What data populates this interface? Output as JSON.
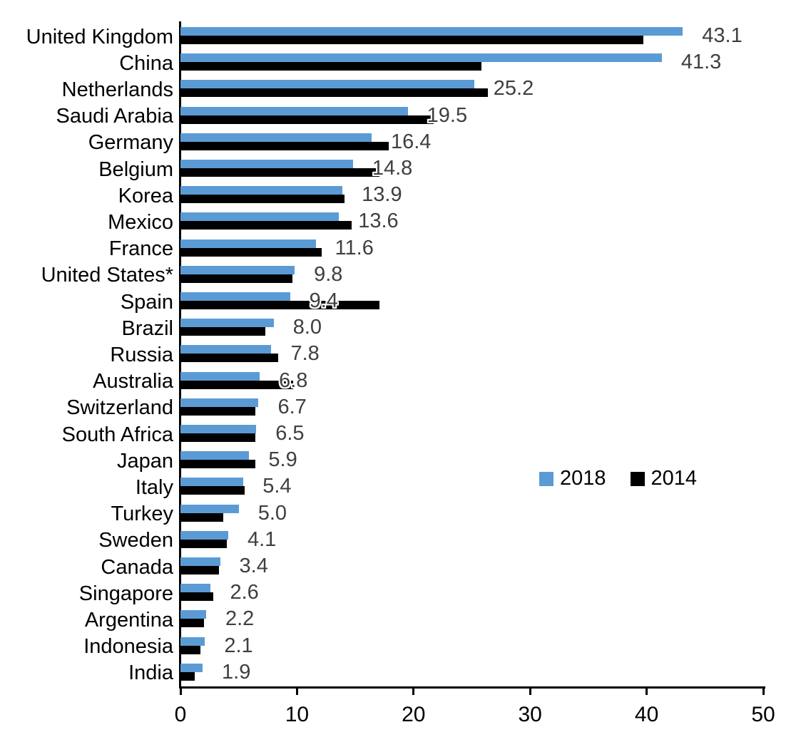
{
  "chart_data": {
    "type": "bar",
    "orientation": "horizontal",
    "title": "",
    "xlabel": "",
    "ylabel": "",
    "xlim": [
      0,
      50
    ],
    "x_ticks": [
      "0",
      "10",
      "20",
      "30",
      "40",
      "50"
    ],
    "grid": false,
    "legend_position": "middle-right",
    "categories": [
      "United Kingdom",
      "China",
      "Netherlands",
      "Saudi Arabia",
      "Germany",
      "Belgium",
      "Korea",
      "Mexico",
      "France",
      "United States*",
      "Spain",
      "Brazil",
      "Russia",
      "Australia",
      "Switzerland",
      "South Africa",
      "Japan",
      "Italy",
      "Turkey",
      "Sweden",
      "Canada",
      "Singapore",
      "Argentina",
      "Indonesia",
      "India"
    ],
    "series": [
      {
        "name": "2018",
        "color": "#5B9BD5",
        "values": [
          43.1,
          41.3,
          25.2,
          19.5,
          16.4,
          14.8,
          13.9,
          13.6,
          11.6,
          9.8,
          9.4,
          8.0,
          7.8,
          6.8,
          6.7,
          6.5,
          5.9,
          5.4,
          5.0,
          4.1,
          3.4,
          2.6,
          2.2,
          2.1,
          1.9
        ]
      },
      {
        "name": "2014",
        "color": "#000000",
        "values": [
          39.7,
          25.8,
          26.4,
          21.7,
          17.9,
          17.1,
          14.1,
          14.7,
          12.1,
          9.6,
          17.1,
          7.3,
          8.4,
          9.7,
          6.4,
          6.4,
          6.4,
          5.5,
          3.7,
          4.0,
          3.3,
          2.8,
          2.0,
          1.7,
          1.2
        ]
      }
    ],
    "data_labels": [
      "43.1",
      "41.3",
      "25.2",
      "19.5",
      "16.4",
      "14.8",
      "13.9",
      "13.6",
      "11.6",
      "9.8",
      "9.4",
      "8.0",
      "7.8",
      "6.8",
      "6.7",
      "6.5",
      "5.9",
      "5.4",
      "5.0",
      "4.1",
      "3.4",
      "2.6",
      "2.2",
      "2.1",
      "1.9"
    ],
    "data_label_series": "2018"
  },
  "colors": {
    "axis": "#000000",
    "value_label": "#3F3F3F",
    "series_2018": "#5B9BD5",
    "series_2014": "#000000"
  }
}
